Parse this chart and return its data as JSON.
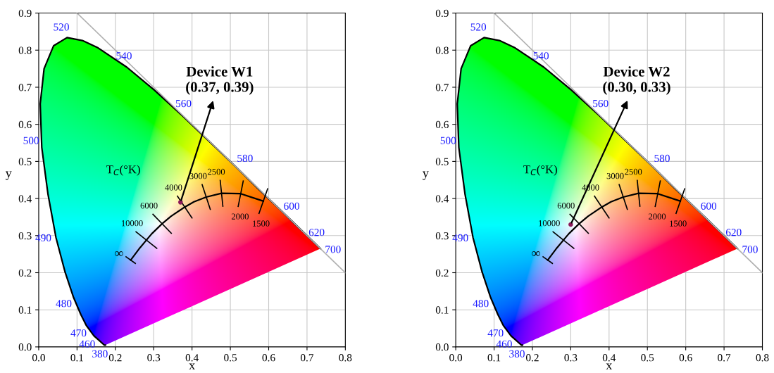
{
  "chart_data": [
    {
      "type": "scatter",
      "xlabel": "x",
      "ylabel": "y",
      "xlim": [
        0,
        0.8
      ],
      "ylim": [
        0,
        0.9
      ],
      "xticks": [
        {
          "value": 0,
          "label": "0.0"
        },
        0.1,
        0.2,
        0.3,
        0.4,
        0.5,
        0.6,
        0.7,
        0.8
      ],
      "yticks": [
        {
          "value": 0,
          "label": "0.0"
        },
        0.1,
        0.2,
        0.3,
        0.4,
        0.5,
        0.6,
        0.7,
        0.8,
        0.9
      ],
      "grid": true,
      "series": [
        {
          "type": "line",
          "color": "#000000",
          "x": [
            0.174,
            0.171,
            0.157,
            0.144,
            0.124,
            0.11,
            0.091,
            0.069,
            0.045,
            0.024,
            0.008,
            0.004,
            0.014,
            0.039,
            0.074,
            0.114,
            0.155,
            0.23,
            0.302,
            0.373,
            0.444,
            0.513,
            0.575,
            0.627,
            0.666,
            0.692,
            0.719,
            0.735
          ],
          "values": [
            0.005,
            0.005,
            0.018,
            0.03,
            0.058,
            0.087,
            0.133,
            0.201,
            0.295,
            0.413,
            0.538,
            0.655,
            0.75,
            0.812,
            0.834,
            0.826,
            0.806,
            0.754,
            0.692,
            0.625,
            0.555,
            0.487,
            0.424,
            0.373,
            0.334,
            0.308,
            0.281,
            0.265
          ]
        },
        {
          "type": "line",
          "color": "#000000",
          "x": [
            0.24,
            0.264,
            0.281,
            0.295,
            0.322,
            0.345,
            0.381,
            0.405,
            0.437,
            0.477,
            0.527,
            0.586
          ],
          "values": [
            0.234,
            0.267,
            0.288,
            0.305,
            0.332,
            0.352,
            0.377,
            0.391,
            0.404,
            0.414,
            0.413,
            0.393
          ]
        },
        {
          "type": "line",
          "color": "#b0b0b0",
          "x": [
            0.1,
            0.8
          ],
          "values": [
            0.9,
            0.2
          ]
        },
        {
          "color": "#8b1a5a",
          "marker": "circle",
          "x": [
            0.37
          ],
          "values": [
            0.39
          ]
        }
      ],
      "annotations": [
        "T$_{C}$(°K)",
        {
          "text": "380",
          "x": 0.174,
          "y": 0.005
        },
        {
          "text": "460",
          "x": 0.144,
          "y": 0.03
        },
        {
          "text": "470",
          "x": 0.124,
          "y": 0.058
        },
        {
          "text": "480",
          "x": 0.091,
          "y": 0.133
        },
        {
          "text": "490",
          "x": 0.045,
          "y": 0.295
        },
        {
          "text": "500",
          "x": 0.008,
          "y": 0.538
        },
        {
          "text": "520",
          "x": 0.074,
          "y": 0.834
        },
        {
          "text": "540",
          "x": 0.23,
          "y": 0.754
        },
        {
          "text": "560",
          "x": 0.373,
          "y": 0.625
        },
        {
          "text": "580",
          "x": 0.513,
          "y": 0.487
        },
        {
          "text": "600",
          "x": 0.627,
          "y": 0.373
        },
        {
          "text": "620",
          "x": 0.692,
          "y": 0.308
        },
        {
          "text": "700",
          "x": 0.735,
          "y": 0.265
        },
        {
          "text": "∞",
          "x": 0.24,
          "y": 0.234
        },
        {
          "text": "10000",
          "x": 0.281,
          "y": 0.288
        },
        {
          "text": "6000",
          "x": 0.322,
          "y": 0.332
        },
        {
          "text": "4000",
          "x": 0.381,
          "y": 0.377
        },
        {
          "text": "3000",
          "x": 0.437,
          "y": 0.404
        },
        {
          "text": "2500",
          "x": 0.477,
          "y": 0.414
        },
        {
          "text": "2000",
          "x": 0.527,
          "y": 0.413
        },
        {
          "text": "1500",
          "x": 0.586,
          "y": 0.393
        },
        {
          "text": "Device W1\n(0.37, 0.39)",
          "x": 0.37,
          "y": 0.39
        }
      ]
    },
    {
      "type": "scatter",
      "xlabel": "x",
      "ylabel": "y",
      "xlim": [
        0,
        0.8
      ],
      "ylim": [
        0,
        0.9
      ],
      "xticks": [
        {
          "value": 0,
          "label": "0.0"
        },
        0.1,
        0.2,
        0.3,
        0.4,
        0.5,
        0.6,
        0.7,
        0.8
      ],
      "yticks": [
        {
          "value": 0,
          "label": "0.0"
        },
        0.1,
        0.2,
        0.3,
        0.4,
        0.5,
        0.6,
        0.7,
        0.8,
        0.9
      ],
      "grid": true,
      "series": [
        {
          "type": "line",
          "color": "#000000",
          "x": [
            0.174,
            0.171,
            0.157,
            0.144,
            0.124,
            0.11,
            0.091,
            0.069,
            0.045,
            0.024,
            0.008,
            0.004,
            0.014,
            0.039,
            0.074,
            0.114,
            0.155,
            0.23,
            0.302,
            0.373,
            0.444,
            0.513,
            0.575,
            0.627,
            0.666,
            0.692,
            0.719,
            0.735
          ],
          "values": [
            0.005,
            0.005,
            0.018,
            0.03,
            0.058,
            0.087,
            0.133,
            0.201,
            0.295,
            0.413,
            0.538,
            0.655,
            0.75,
            0.812,
            0.834,
            0.826,
            0.806,
            0.754,
            0.692,
            0.625,
            0.555,
            0.487,
            0.424,
            0.373,
            0.334,
            0.308,
            0.281,
            0.265
          ]
        },
        {
          "type": "line",
          "color": "#000000",
          "x": [
            0.24,
            0.264,
            0.281,
            0.295,
            0.322,
            0.345,
            0.381,
            0.405,
            0.437,
            0.477,
            0.527,
            0.586
          ],
          "values": [
            0.234,
            0.267,
            0.288,
            0.305,
            0.332,
            0.352,
            0.377,
            0.391,
            0.404,
            0.414,
            0.413,
            0.393
          ]
        },
        {
          "type": "line",
          "color": "#b0b0b0",
          "x": [
            0.1,
            0.8
          ],
          "values": [
            0.9,
            0.2
          ]
        },
        {
          "color": "#8b1a5a",
          "marker": "circle",
          "x": [
            0.3
          ],
          "values": [
            0.33
          ]
        }
      ],
      "annotations": [
        "T$_{C}$(°K)",
        {
          "text": "380",
          "x": 0.174,
          "y": 0.005
        },
        {
          "text": "460",
          "x": 0.144,
          "y": 0.03
        },
        {
          "text": "470",
          "x": 0.124,
          "y": 0.058
        },
        {
          "text": "480",
          "x": 0.091,
          "y": 0.133
        },
        {
          "text": "490",
          "x": 0.045,
          "y": 0.295
        },
        {
          "text": "500",
          "x": 0.008,
          "y": 0.538
        },
        {
          "text": "520",
          "x": 0.074,
          "y": 0.834
        },
        {
          "text": "540",
          "x": 0.23,
          "y": 0.754
        },
        {
          "text": "560",
          "x": 0.373,
          "y": 0.625
        },
        {
          "text": "580",
          "x": 0.513,
          "y": 0.487
        },
        {
          "text": "600",
          "x": 0.627,
          "y": 0.373
        },
        {
          "text": "620",
          "x": 0.692,
          "y": 0.308
        },
        {
          "text": "700",
          "x": 0.735,
          "y": 0.265
        },
        {
          "text": "∞",
          "x": 0.24,
          "y": 0.234
        },
        {
          "text": "10000",
          "x": 0.281,
          "y": 0.288
        },
        {
          "text": "6000",
          "x": 0.322,
          "y": 0.332
        },
        {
          "text": "4000",
          "x": 0.381,
          "y": 0.377
        },
        {
          "text": "3000",
          "x": 0.437,
          "y": 0.404
        },
        {
          "text": "2500",
          "x": 0.477,
          "y": 0.414
        },
        {
          "text": "2000",
          "x": 0.527,
          "y": 0.413
        },
        {
          "text": "1500",
          "x": 0.586,
          "y": 0.393
        },
        {
          "text": "Device W2\n(0.30, 0.33)",
          "x": 0.3,
          "y": 0.33
        }
      ]
    }
  ]
}
